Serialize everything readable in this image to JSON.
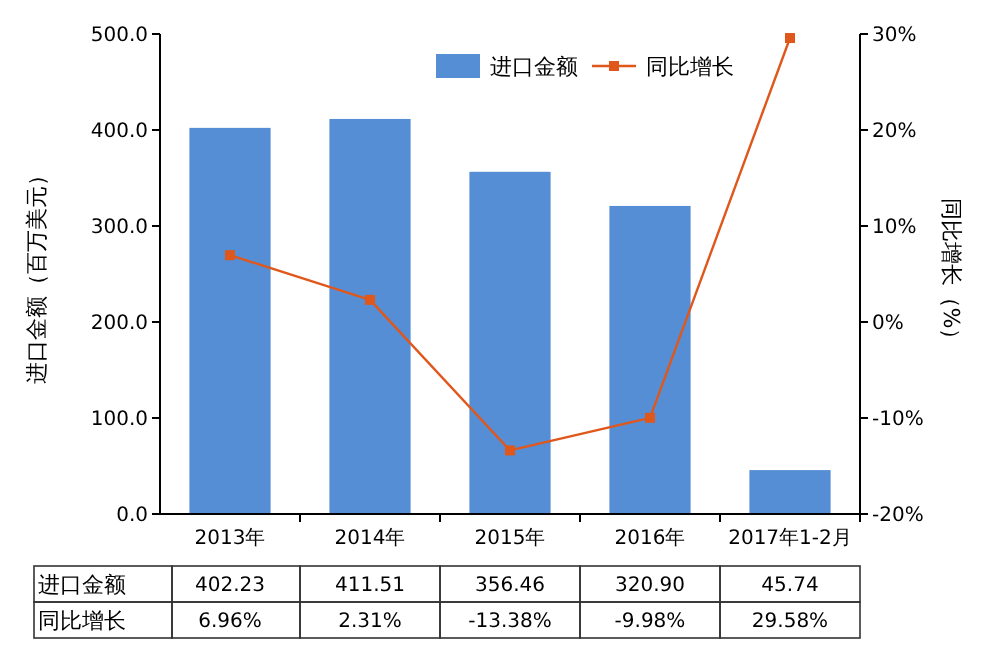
{
  "chart_data": {
    "type": "bar",
    "categories": [
      "2013年",
      "2014年",
      "2015年",
      "2016年",
      "2017年1-2月"
    ],
    "ylabel": "进口金额（百万美元）",
    "y2label": "同比增长（%）",
    "ylim": [
      0,
      500
    ],
    "yticks": [
      {
        "value": 0,
        "label": "0.0"
      },
      {
        "value": 100,
        "label": "100.0"
      },
      {
        "value": 200,
        "label": "200.0"
      },
      {
        "value": 300,
        "label": "300.0"
      },
      {
        "value": 400,
        "label": "400.0"
      },
      {
        "value": 500,
        "label": "500.0"
      }
    ],
    "y2lim": [
      -20,
      30
    ],
    "y2ticks": [
      {
        "value": -20,
        "label": "-20%"
      },
      {
        "value": -10,
        "label": "-10%"
      },
      {
        "value": 0,
        "label": "0%"
      },
      {
        "value": 10,
        "label": "10%"
      },
      {
        "value": 20,
        "label": "20%"
      },
      {
        "value": 30,
        "label": "30%"
      }
    ],
    "legend": "top right",
    "grid": false,
    "series": [
      {
        "name": "进口金额",
        "color": "#558ed5",
        "values": [
          402.23,
          411.51,
          356.46,
          320.9,
          45.74
        ],
        "value_labels": [
          "402.23",
          "411.51",
          "356.46",
          "320.90",
          "45.74"
        ]
      },
      {
        "name": "同比增长",
        "type": "line",
        "axis": "y2",
        "color": "#e0571c",
        "marker": "square",
        "values": [
          6.96,
          2.31,
          -13.38,
          -9.98,
          29.58
        ],
        "value_labels": [
          "6.96%",
          "2.31%",
          "-13.38%",
          "-9.98%",
          "29.58%"
        ]
      }
    ]
  }
}
